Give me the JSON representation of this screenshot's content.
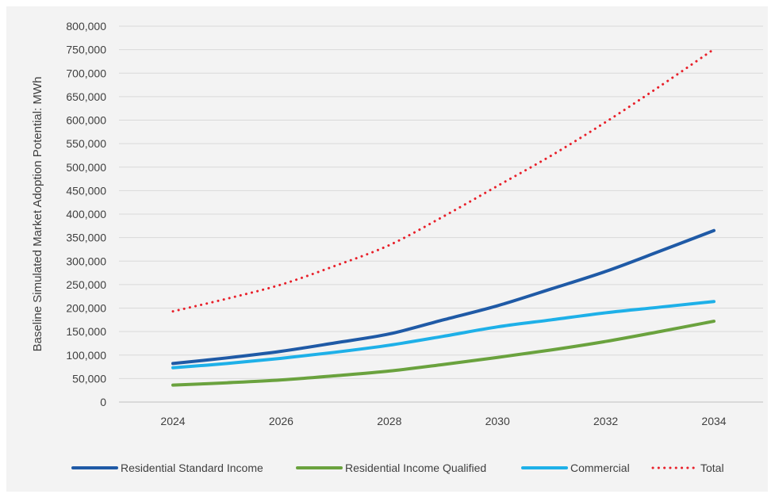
{
  "chart_data": {
    "type": "line",
    "ylabel": "Baseline Simulated Market Adoption Potential: MWh",
    "xlabel": "",
    "x": [
      2024,
      2025,
      2026,
      2027,
      2028,
      2029,
      2030,
      2031,
      2032,
      2033,
      2034
    ],
    "x_ticks": [
      "2024",
      "2026",
      "2028",
      "2030",
      "2032",
      "2034"
    ],
    "ylim": [
      0,
      800000
    ],
    "y_ticks": [
      "0",
      "50,000",
      "100,000",
      "150,000",
      "200,000",
      "250,000",
      "300,000",
      "350,000",
      "400,000",
      "450,000",
      "500,000",
      "550,000",
      "600,000",
      "650,000",
      "700,000",
      "750,000",
      "800,000"
    ],
    "grid": true,
    "legend_position": "bottom",
    "series": [
      {
        "name": "Residential Standard Income",
        "color": "#1f5aa6",
        "dash": "solid",
        "values": [
          82000,
          94000,
          108000,
          126000,
          145000,
          175000,
          205000,
          241000,
          278000,
          321000,
          365000
        ]
      },
      {
        "name": "Residential Income Qualified",
        "color": "#6aa23e",
        "dash": "solid",
        "values": [
          36000,
          41000,
          47000,
          56000,
          66000,
          80000,
          95000,
          111000,
          129000,
          150000,
          172000
        ]
      },
      {
        "name": "Commercial",
        "color": "#1eb0e8",
        "dash": "solid",
        "values": [
          73000,
          82000,
          93000,
          106000,
          121000,
          140000,
          160000,
          175000,
          190000,
          202000,
          214000
        ]
      },
      {
        "name": "Total",
        "color": "#e8202a",
        "dash": "dotted",
        "values": [
          193000,
          220000,
          250000,
          290000,
          334000,
          395000,
          460000,
          525000,
          596000,
          672000,
          751000
        ]
      }
    ]
  }
}
